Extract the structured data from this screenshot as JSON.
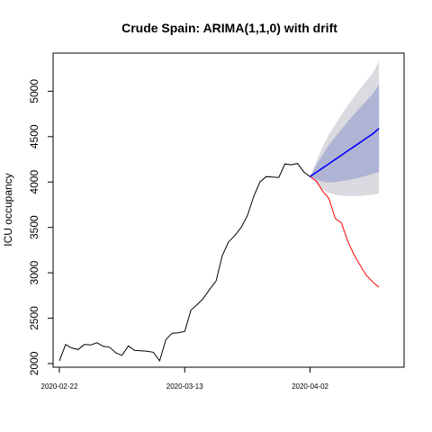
{
  "chart_data": {
    "type": "line",
    "title": "Crude Spain: ARIMA(1,1,0) with drift",
    "xlabel": "",
    "ylabel": "ICU occupancy",
    "ylim": [
      1960,
      5420
    ],
    "xlim": [
      -1,
      55
    ],
    "y_ticks": [
      2000,
      2500,
      3000,
      3500,
      4000,
      4500,
      5000
    ],
    "x_ticks": [
      {
        "index": 0,
        "label": "2020-02-22"
      },
      {
        "index": 20,
        "label": "2020-03-13"
      },
      {
        "index": 40,
        "label": "2020-04-02"
      }
    ],
    "grid": false,
    "series": [
      {
        "values": [
          2030,
          2210,
          2170,
          2155,
          2210,
          2205,
          2230,
          2190,
          2180,
          2120,
          2090,
          2195,
          2145,
          2140,
          2135,
          2125,
          2030,
          2265,
          2335,
          2340,
          2355,
          2590,
          2650,
          2720,
          2820,
          2910,
          3190,
          3340,
          3410,
          3500,
          3630,
          3840,
          4000,
          4060,
          4055,
          4050,
          4200,
          4190,
          4205,
          4110,
          4060
        ],
        "color": "#000000"
      },
      {
        "x": [
          40,
          41,
          42,
          43,
          44,
          45,
          46,
          47,
          48,
          49,
          50,
          51
        ],
        "values": [
          4060,
          4010,
          3900,
          3820,
          3600,
          3550,
          3350,
          3200,
          3080,
          2970,
          2900,
          2840
        ],
        "color": "#ff0000"
      }
    ],
    "forecast": {
      "x": [
        40,
        41,
        42,
        43,
        44,
        45,
        46,
        47,
        48,
        49,
        50,
        51
      ],
      "mean": [
        4060,
        4107,
        4154,
        4201,
        4248,
        4295,
        4343,
        4390,
        4437,
        4484,
        4531,
        4590
      ],
      "lo80": [
        4060,
        4030,
        4005,
        3995,
        4000,
        4010,
        4020,
        4035,
        4050,
        4070,
        4090,
        4110
      ],
      "hi80": [
        4060,
        4185,
        4303,
        4407,
        4496,
        4580,
        4666,
        4745,
        4824,
        4898,
        4972,
        5070
      ],
      "lo95": [
        4060,
        3990,
        3920,
        3880,
        3860,
        3850,
        3845,
        3845,
        3848,
        3855,
        3862,
        3870
      ],
      "hi95": [
        4060,
        4225,
        4388,
        4522,
        4636,
        4740,
        4840,
        4935,
        5026,
        5113,
        5200,
        5330
      ],
      "mean_color": "#0000ff",
      "band80_color": "#b0b4d4",
      "band95_color": "#dadae0"
    }
  }
}
